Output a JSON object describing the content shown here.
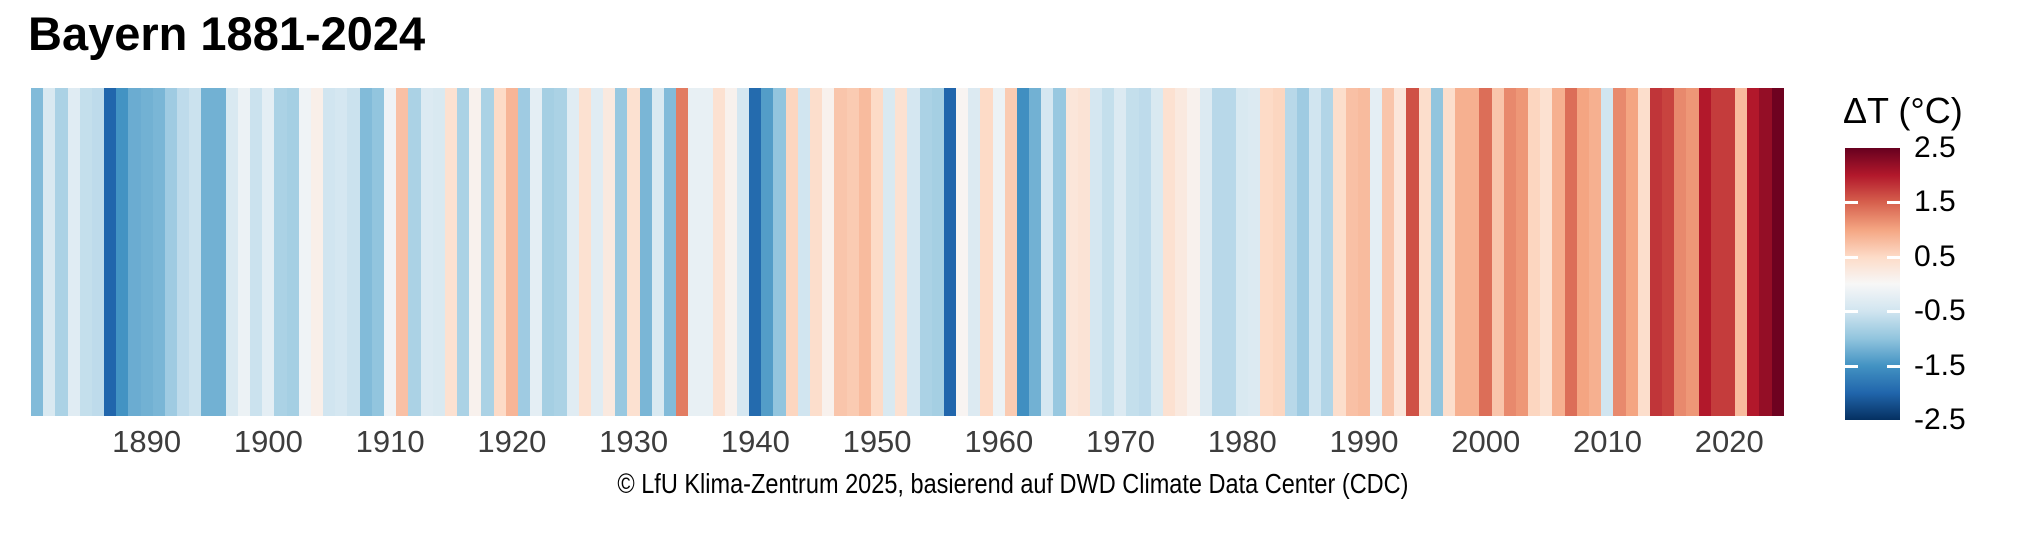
{
  "title": "Bayern 1881-2024",
  "caption": "© LfU Klima-Zentrum 2025, basierend auf DWD Climate Data Center (CDC)",
  "x_axis": {
    "tick_years": [
      1890,
      1900,
      1910,
      1920,
      1930,
      1940,
      1950,
      1960,
      1970,
      1980,
      1990,
      2000,
      2010,
      2020
    ]
  },
  "legend": {
    "title": "ΔT (°C)",
    "tick_labels": [
      "2.5",
      "1.5",
      "0.5",
      "-0.5",
      "-1.5",
      "-2.5"
    ],
    "tick_values": [
      2.5,
      1.5,
      0.5,
      -0.5,
      -1.5,
      -2.5
    ],
    "inner_tick_values": [
      1.5,
      0.5,
      -0.5,
      -1.5
    ]
  },
  "colors": {
    "background": "#ffffff",
    "title_text": "#000000",
    "axis_text": "#3d3d3d",
    "scale_min_color": "#053061",
    "scale_mid_color": "#f7f7f7",
    "scale_max_color": "#67001f"
  },
  "chart_data": {
    "type": "heatmap",
    "variant": "warming-stripes",
    "title": "Bayern 1881-2024",
    "region": "Bayern",
    "unit": "°C",
    "legend_label": "ΔT (°C)",
    "value_domain": [
      -2.5,
      2.5
    ],
    "colormap_stops": [
      {
        "value": -2.5,
        "color": "#053061"
      },
      {
        "value": -2.0,
        "color": "#2166ac"
      },
      {
        "value": -1.5,
        "color": "#4393c3"
      },
      {
        "value": -1.0,
        "color": "#92c5de"
      },
      {
        "value": -0.5,
        "color": "#d1e5f0"
      },
      {
        "value": 0.0,
        "color": "#f7f7f7"
      },
      {
        "value": 0.5,
        "color": "#fddbc7"
      },
      {
        "value": 1.0,
        "color": "#f4a582"
      },
      {
        "value": 1.5,
        "color": "#d6604d"
      },
      {
        "value": 2.0,
        "color": "#b2182b"
      },
      {
        "value": 2.5,
        "color": "#67001f"
      }
    ],
    "start_year": 1881,
    "end_year": 2024,
    "values": [
      -1.1,
      -0.4,
      -0.8,
      -0.3,
      -0.6,
      -0.65,
      -2.0,
      -1.5,
      -1.25,
      -1.2,
      -1.15,
      -0.9,
      -0.65,
      -0.55,
      -1.2,
      -1.2,
      -0.4,
      -0.15,
      -0.55,
      -0.25,
      -0.8,
      -0.85,
      -0.1,
      0.15,
      -0.5,
      -0.45,
      -0.55,
      -1.1,
      -1.0,
      -0.1,
      0.75,
      -0.8,
      -0.35,
      -0.4,
      0.4,
      -0.8,
      0.1,
      -0.8,
      0.5,
      0.85,
      -0.9,
      -0.25,
      -0.85,
      -0.8,
      -0.3,
      0.4,
      -0.3,
      0.25,
      -0.95,
      0.4,
      -1.15,
      -0.4,
      -1.1,
      1.3,
      -0.2,
      -0.2,
      0.4,
      0.1,
      -0.45,
      -1.95,
      -1.4,
      -1.0,
      0.55,
      -0.5,
      0.45,
      0.1,
      0.7,
      0.65,
      0.8,
      0.5,
      -0.4,
      0.4,
      -0.45,
      -0.8,
      -0.85,
      -2.0,
      0.05,
      -0.35,
      0.5,
      -0.15,
      0.65,
      -1.55,
      -1.2,
      -0.45,
      -0.95,
      0.3,
      0.35,
      -0.45,
      -0.6,
      -0.35,
      -0.6,
      -0.65,
      -0.4,
      0.4,
      0.25,
      0.1,
      -0.35,
      -0.7,
      -0.7,
      -0.4,
      -0.35,
      0.5,
      0.55,
      -0.7,
      -0.9,
      -0.5,
      -0.75,
      0.45,
      0.75,
      0.8,
      -0.25,
      0.7,
      0.3,
      1.6,
      0.45,
      -1.0,
      0.45,
      0.9,
      0.9,
      1.4,
      0.7,
      1.2,
      1.1,
      0.55,
      0.4,
      0.9,
      1.4,
      1.0,
      0.9,
      -0.5,
      1.2,
      1.0,
      0.45,
      1.8,
      1.7,
      1.2,
      1.1,
      2.0,
      1.75,
      1.75,
      0.8,
      2.0,
      2.2,
      2.45
    ]
  }
}
